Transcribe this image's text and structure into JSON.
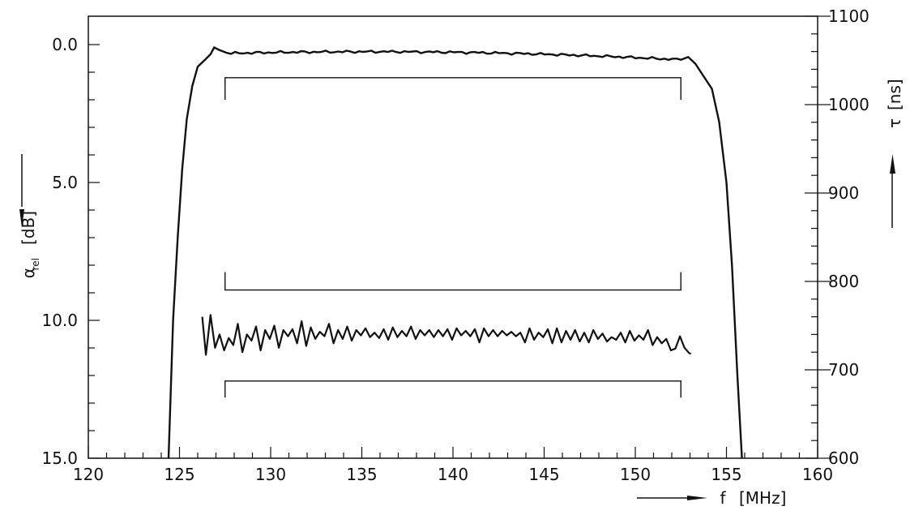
{
  "chart_data": {
    "type": "line",
    "x_axis": {
      "label": "f",
      "unit": "[MHz]",
      "range": [
        120,
        160
      ],
      "ticks": [
        120,
        125,
        130,
        135,
        140,
        145,
        150,
        155,
        160
      ],
      "tick_labels": [
        "120",
        "125",
        "130",
        "135",
        "140",
        "145",
        "150",
        "155",
        "160"
      ]
    },
    "y_left": {
      "symbol": "α",
      "subscript": "rel",
      "unit": "[dB]",
      "range": [
        0,
        15
      ],
      "inverted": true,
      "ticks": [
        0,
        5,
        10,
        15
      ],
      "tick_labels": [
        "0.0",
        "5.0",
        "10.0",
        "15.0"
      ]
    },
    "y_right": {
      "symbol": "τ",
      "unit": "[ns]",
      "range": [
        600,
        1100
      ],
      "ticks": [
        600,
        700,
        800,
        900,
        1000,
        1100
      ],
      "tick_labels": [
        "600",
        "700",
        "800",
        "900",
        "1000",
        "1100"
      ]
    },
    "series": [
      {
        "axis": "left",
        "points": [
          [
            124.4,
            15.0
          ],
          [
            124.65,
            10.0
          ],
          [
            124.9,
            7.0
          ],
          [
            125.15,
            4.5
          ],
          [
            125.4,
            2.7
          ],
          [
            125.7,
            1.5
          ],
          [
            126.0,
            0.8
          ],
          [
            126.4,
            0.55
          ],
          [
            126.7,
            0.35
          ],
          [
            126.9,
            0.1
          ],
          [
            127.2,
            0.2
          ],
          [
            127.6,
            0.3
          ]
        ],
        "ripple": {
          "from": 127.6,
          "to": 152.5,
          "base_start": 0.32,
          "base_end": 0.55,
          "base_mid": 0.12,
          "amplitude": 0.05
        },
        "tail": [
          [
            152.5,
            0.55
          ],
          [
            152.9,
            0.45
          ],
          [
            153.3,
            0.7
          ],
          [
            153.7,
            1.1
          ],
          [
            154.2,
            1.6
          ],
          [
            154.6,
            2.8
          ],
          [
            155.0,
            5.0
          ],
          [
            155.3,
            8.0
          ],
          [
            155.6,
            12.0
          ],
          [
            155.85,
            15.0
          ]
        ]
      },
      {
        "axis": "right",
        "points": [
          [
            126.25,
            760
          ],
          [
            126.45,
            717
          ],
          [
            126.7,
            762
          ],
          [
            126.95,
            725
          ],
          [
            127.2,
            740
          ],
          [
            127.45,
            722
          ],
          [
            127.7,
            736
          ],
          [
            127.95,
            728
          ],
          [
            128.2,
            752
          ],
          [
            128.45,
            720
          ],
          [
            128.7,
            740
          ],
          [
            128.95,
            733
          ],
          [
            129.2,
            749
          ],
          [
            129.45,
            722
          ],
          [
            129.7,
            745
          ],
          [
            129.95,
            735
          ],
          [
            130.2,
            750
          ],
          [
            130.45,
            725
          ],
          [
            130.7,
            745
          ],
          [
            130.95,
            738
          ],
          [
            131.2,
            746
          ],
          [
            131.45,
            730
          ],
          [
            131.7,
            755
          ],
          [
            131.95,
            727
          ],
          [
            132.2,
            748
          ],
          [
            132.45,
            735
          ],
          [
            132.7,
            743
          ],
          [
            132.95,
            738
          ],
          [
            133.2,
            752
          ],
          [
            133.45,
            730
          ],
          [
            133.7,
            745
          ],
          [
            133.95,
            735
          ],
          [
            134.2,
            749
          ],
          [
            134.45,
            733
          ],
          [
            134.7,
            745
          ],
          [
            134.95,
            739
          ],
          [
            135.2,
            747
          ],
          [
            135.45,
            737
          ],
          [
            135.7,
            742
          ],
          [
            135.95,
            736
          ],
          [
            136.2,
            746
          ],
          [
            136.45,
            734
          ],
          [
            136.7,
            748
          ],
          [
            136.95,
            737
          ],
          [
            137.2,
            744
          ],
          [
            137.45,
            738
          ],
          [
            137.7,
            749
          ],
          [
            137.95,
            735
          ],
          [
            138.2,
            745
          ],
          [
            138.45,
            739
          ],
          [
            138.7,
            745
          ],
          [
            138.95,
            737
          ],
          [
            139.2,
            745
          ],
          [
            139.45,
            738
          ],
          [
            139.7,
            746
          ],
          [
            139.95,
            734
          ],
          [
            140.2,
            747
          ],
          [
            140.45,
            739
          ],
          [
            140.7,
            744
          ],
          [
            140.95,
            738
          ],
          [
            141.2,
            746
          ],
          [
            141.45,
            731
          ],
          [
            141.7,
            747
          ],
          [
            141.95,
            738
          ],
          [
            142.2,
            745
          ],
          [
            142.45,
            738
          ],
          [
            142.7,
            744
          ],
          [
            142.95,
            739
          ],
          [
            143.2,
            743
          ],
          [
            143.45,
            738
          ],
          [
            143.7,
            742
          ],
          [
            143.95,
            731
          ],
          [
            144.2,
            747
          ],
          [
            144.45,
            734
          ],
          [
            144.7,
            742
          ],
          [
            144.95,
            737
          ],
          [
            145.2,
            746
          ],
          [
            145.45,
            730
          ],
          [
            145.7,
            747
          ],
          [
            145.95,
            731
          ],
          [
            146.2,
            744
          ],
          [
            146.45,
            734
          ],
          [
            146.7,
            745
          ],
          [
            146.95,
            732
          ],
          [
            147.2,
            742
          ],
          [
            147.45,
            731
          ],
          [
            147.7,
            745
          ],
          [
            147.95,
            735
          ],
          [
            148.2,
            741
          ],
          [
            148.45,
            732
          ],
          [
            148.7,
            737
          ],
          [
            148.95,
            734
          ],
          [
            149.2,
            742
          ],
          [
            149.45,
            731
          ],
          [
            149.7,
            744
          ],
          [
            149.95,
            733
          ],
          [
            150.2,
            739
          ],
          [
            150.45,
            734
          ],
          [
            150.7,
            745
          ],
          [
            150.95,
            728
          ],
          [
            151.2,
            737
          ],
          [
            151.45,
            730
          ],
          [
            151.7,
            735
          ],
          [
            151.95,
            722
          ],
          [
            152.2,
            724
          ],
          [
            152.45,
            738
          ],
          [
            152.7,
            725
          ],
          [
            152.95,
            719
          ],
          [
            153.05,
            718
          ]
        ]
      }
    ],
    "brackets": [
      {
        "axis": "left",
        "x": [
          127.5,
          152.5
        ],
        "y": 1.2,
        "leg": 0.8
      },
      {
        "axis": "left",
        "x": [
          127.5,
          152.5
        ],
        "y": 8.9,
        "leg": -0.65
      },
      {
        "axis": "left",
        "x": [
          127.5,
          152.5
        ],
        "y": 12.2,
        "leg": 0.6
      }
    ]
  }
}
